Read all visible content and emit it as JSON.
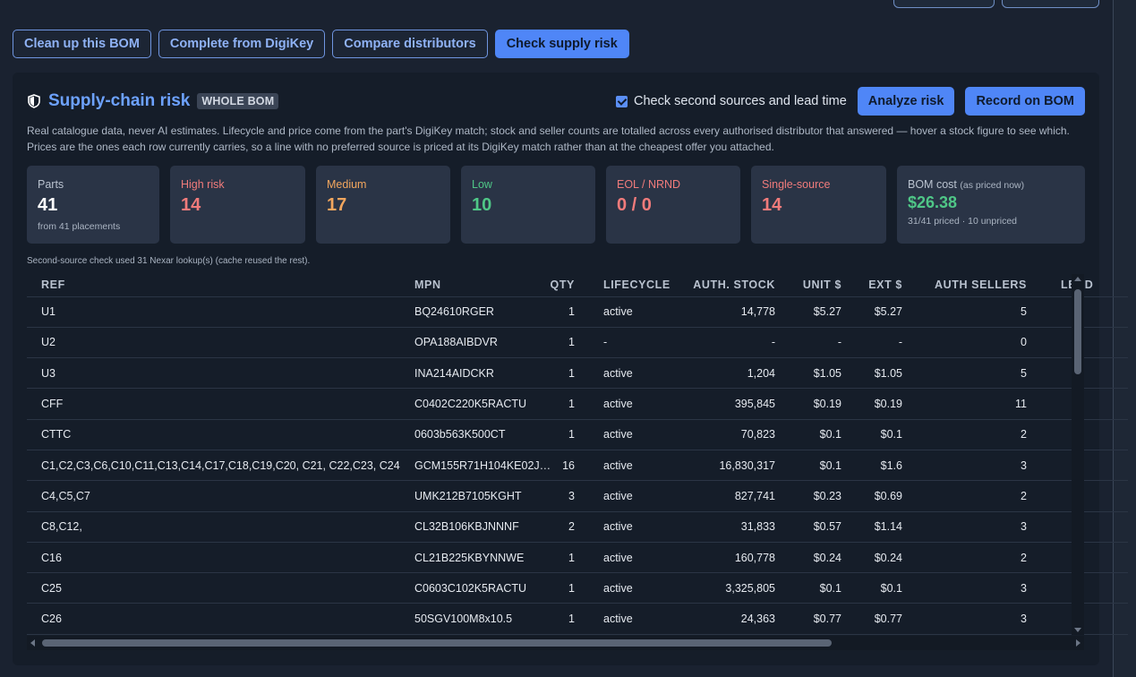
{
  "tabs": [
    {
      "label": "Clean up this BOM"
    },
    {
      "label": "Complete from DigiKey"
    },
    {
      "label": "Compare distributors"
    },
    {
      "label": "Check supply risk"
    }
  ],
  "panel": {
    "icon": "shield-icon",
    "title": "Supply-chain risk",
    "badge": "WHOLE BOM",
    "checkbox_label": "Check second sources and lead time",
    "checkbox_checked": true,
    "analyze_button": "Analyze risk",
    "record_button": "Record on BOM",
    "description_line1": "Real catalogue data, never AI estimates. Lifecycle and price come from the part's DigiKey match; stock and seller counts are totalled across every authorised distributor that answered — hover a stock figure to see which.",
    "description_line2": "Prices are the ones each row currently carries, so a line with no preferred source is priced at its DigiKey match rather than at the cheapest offer you attached.",
    "note": "Second-source check used 31 Nexar lookup(s) (cache reused the rest)."
  },
  "cards": {
    "parts": {
      "label": "Parts",
      "value": "41",
      "sub": "from 41 placements"
    },
    "high": {
      "label": "High risk",
      "value": "14"
    },
    "medium": {
      "label": "Medium",
      "value": "17"
    },
    "low": {
      "label": "Low",
      "value": "10"
    },
    "eol": {
      "label": "EOL / NRND",
      "value": "0 / 0"
    },
    "single": {
      "label": "Single-source",
      "value": "14"
    },
    "cost": {
      "label": "BOM cost",
      "label_note": "(as priced now)",
      "value": "$26.38",
      "sub": "31/41 priced · 10 unpriced"
    }
  },
  "table": {
    "headers": {
      "ref": "REF",
      "mpn": "MPN",
      "qty": "QTY",
      "lifecycle": "LIFECYCLE",
      "stock": "AUTH. STOCK",
      "unit": "UNIT $",
      "ext": "EXT $",
      "sellers": "AUTH SELLERS",
      "lead": "LEAD"
    },
    "rows": [
      {
        "ref": "U1",
        "mpn": "BQ24610RGER",
        "qty": "1",
        "lifecycle": "active",
        "stock": "14,778",
        "unit": "$5.27",
        "ext": "$5.27",
        "sellers": "5"
      },
      {
        "ref": "U2",
        "mpn": "OPA188AIBDVR",
        "qty": "1",
        "lifecycle": "-",
        "stock": "-",
        "unit": "-",
        "ext": "-",
        "sellers": "0"
      },
      {
        "ref": "U3",
        "mpn": "INA214AIDCKR",
        "qty": "1",
        "lifecycle": "active",
        "stock": "1,204",
        "unit": "$1.05",
        "ext": "$1.05",
        "sellers": "5"
      },
      {
        "ref": "CFF",
        "mpn": "C0402C220K5RACTU",
        "qty": "1",
        "lifecycle": "active",
        "stock": "395,845",
        "unit": "$0.19",
        "ext": "$0.19",
        "sellers": "11"
      },
      {
        "ref": "CTTC",
        "mpn": "0603b563K500CT",
        "qty": "1",
        "lifecycle": "active",
        "stock": "70,823",
        "unit": "$0.1",
        "ext": "$0.1",
        "sellers": "2"
      },
      {
        "ref": "C1,C2,C3,C6,C10,C11,C13,C14,C17,C18,C19,C20, C21, C22,C23, C24",
        "mpn": "GCM155R71H104KE02J…",
        "qty": "16",
        "lifecycle": "active",
        "stock": "16,830,317",
        "unit": "$0.1",
        "ext": "$1.6",
        "sellers": "3"
      },
      {
        "ref": "C4,C5,C7",
        "mpn": "UMK212B7105KGHT",
        "qty": "3",
        "lifecycle": "active",
        "stock": "827,741",
        "unit": "$0.23",
        "ext": "$0.69",
        "sellers": "2"
      },
      {
        "ref": "C8,C12,",
        "mpn": "CL32B106KBJNNNF",
        "qty": "2",
        "lifecycle": "active",
        "stock": "31,833",
        "unit": "$0.57",
        "ext": "$1.14",
        "sellers": "3"
      },
      {
        "ref": "C16",
        "mpn": "CL21B225KBYNNWE",
        "qty": "1",
        "lifecycle": "active",
        "stock": "160,778",
        "unit": "$0.24",
        "ext": "$0.24",
        "sellers": "2"
      },
      {
        "ref": "C25",
        "mpn": "C0603C102K5RACTU",
        "qty": "1",
        "lifecycle": "active",
        "stock": "3,325,805",
        "unit": "$0.1",
        "ext": "$0.1",
        "sellers": "3"
      },
      {
        "ref": "C26",
        "mpn": "50SGV100M8x10.5",
        "qty": "1",
        "lifecycle": "active",
        "stock": "24,363",
        "unit": "$0.77",
        "ext": "$0.77",
        "sellers": "3"
      }
    ]
  }
}
